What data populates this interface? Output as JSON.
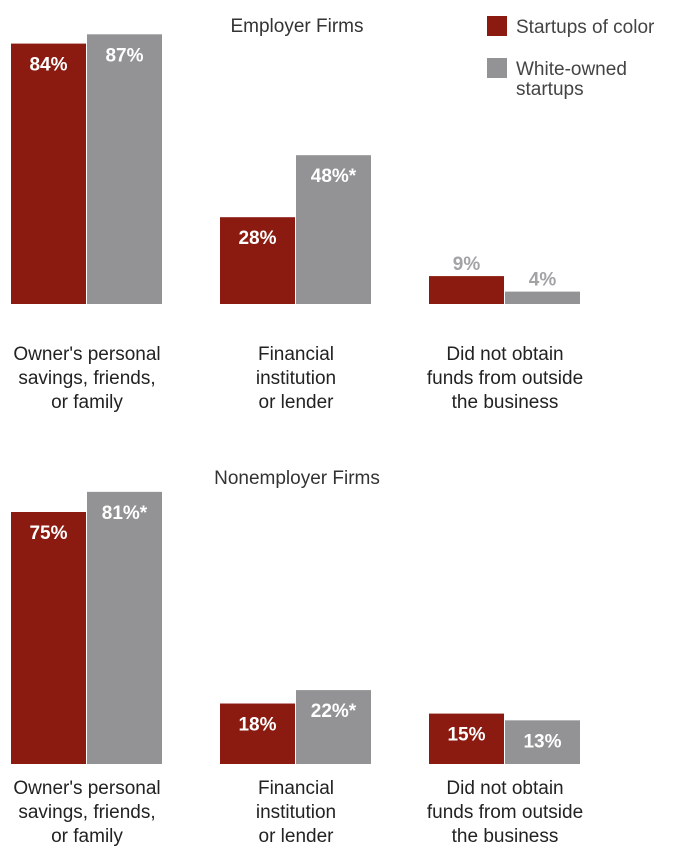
{
  "colors": {
    "series_a": "#8b1a10",
    "series_b": "#939396",
    "label_on_bar": "#ffffff",
    "label_outside": "#a3a3a6"
  },
  "legend": [
    {
      "lines": [
        "Startups of color"
      ]
    },
    {
      "lines": [
        "White-owned",
        "startups"
      ]
    }
  ],
  "chart_data": [
    {
      "type": "bar",
      "title": "Employer Firms",
      "categories": [
        [
          "Owner's personal",
          "savings, friends,",
          "or family"
        ],
        [
          "Financial",
          "institution",
          "or lender"
        ],
        [
          "Did not obtain",
          "funds from outside",
          "the business"
        ]
      ],
      "series": [
        {
          "name": "Startups of color",
          "values": [
            84,
            28,
            9
          ],
          "labels": [
            "84%",
            "28%",
            "9%"
          ]
        },
        {
          "name": "White-owned startups",
          "values": [
            87,
            48,
            4
          ],
          "labels": [
            "87%",
            "48%*",
            "4%"
          ]
        }
      ],
      "ylim": [
        0,
        100
      ],
      "grid": false,
      "legend_position": "top-right"
    },
    {
      "type": "bar",
      "title": "Nonemployer Firms",
      "categories": [
        [
          "Owner's personal",
          "savings, friends,",
          "or family"
        ],
        [
          "Financial",
          "institution",
          "or lender"
        ],
        [
          "Did not obtain",
          "funds from outside",
          "the business"
        ]
      ],
      "series": [
        {
          "name": "Startups of color",
          "values": [
            75,
            18,
            15
          ],
          "labels": [
            "75%",
            "18%",
            "15%"
          ]
        },
        {
          "name": "White-owned startups",
          "values": [
            81,
            22,
            13
          ],
          "labels": [
            "81%*",
            "22%*",
            "13%"
          ]
        }
      ],
      "ylim": [
        0,
        100
      ],
      "grid": false,
      "legend_position": "none"
    }
  ]
}
